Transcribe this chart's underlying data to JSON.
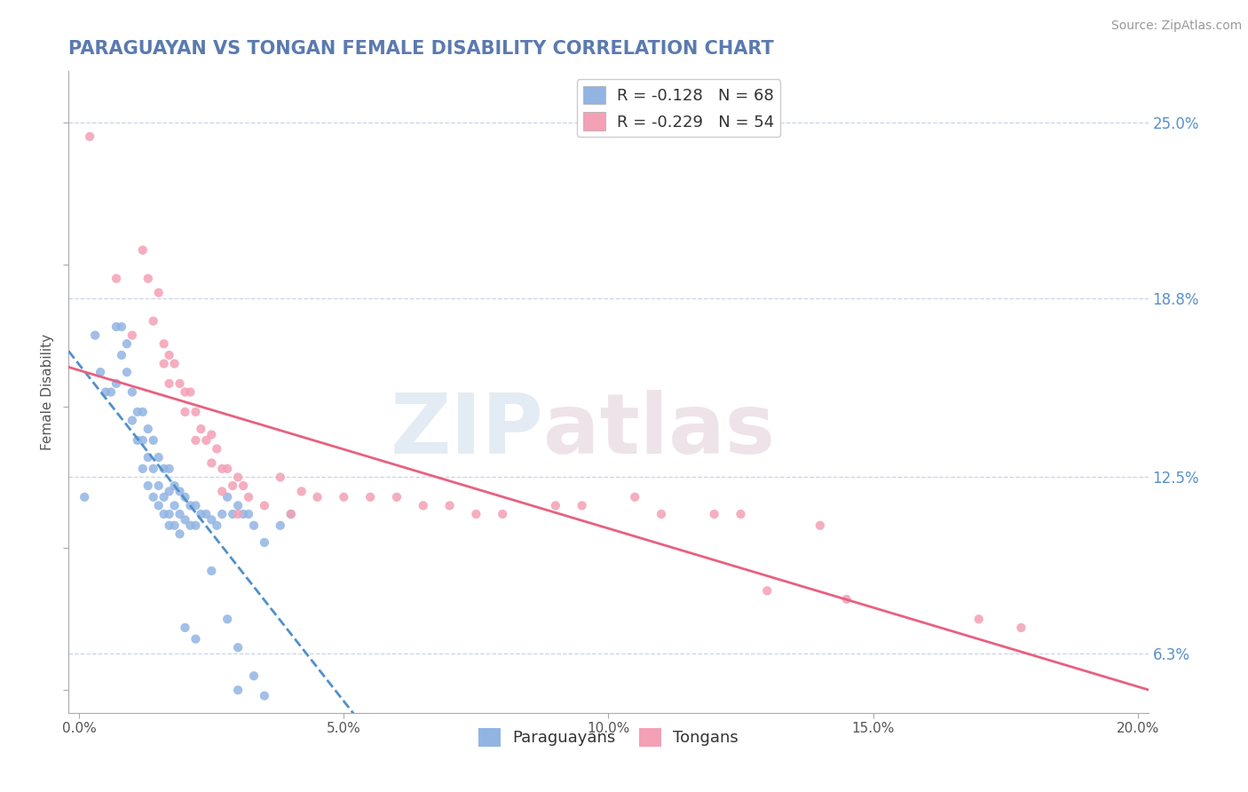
{
  "title": "PARAGUAYAN VS TONGAN FEMALE DISABILITY CORRELATION CHART",
  "source": "Source: ZipAtlas.com",
  "ylabel": "Female Disability",
  "xlim": [
    -0.002,
    0.202
  ],
  "ylim": [
    0.042,
    0.268
  ],
  "right_yticks": [
    0.063,
    0.125,
    0.188,
    0.25
  ],
  "right_yticklabels": [
    "6.3%",
    "12.5%",
    "18.8%",
    "25.0%"
  ],
  "xticks": [
    0.0,
    0.05,
    0.1,
    0.15,
    0.2
  ],
  "xticklabels": [
    "0.0%",
    "5.0%",
    "10.0%",
    "15.0%",
    "20.0%"
  ],
  "paraguayan_R": -0.128,
  "paraguayan_N": 68,
  "tongan_R": -0.229,
  "tongan_N": 54,
  "paraguayan_color": "#92b4e3",
  "tongan_color": "#f4a0b5",
  "paraguayan_line_color": "#5090cc",
  "tongan_line_color": "#e86080",
  "background_color": "#ffffff",
  "grid_color": "#c8d4e8",
  "title_color": "#5a7ab0",
  "watermark_zip": "ZIP",
  "watermark_atlas": "atlas",
  "paraguayan_x": [
    0.001,
    0.003,
    0.004,
    0.005,
    0.006,
    0.007,
    0.007,
    0.008,
    0.008,
    0.009,
    0.009,
    0.01,
    0.01,
    0.011,
    0.011,
    0.012,
    0.012,
    0.012,
    0.013,
    0.013,
    0.013,
    0.014,
    0.014,
    0.014,
    0.015,
    0.015,
    0.015,
    0.016,
    0.016,
    0.016,
    0.017,
    0.017,
    0.017,
    0.017,
    0.018,
    0.018,
    0.018,
    0.019,
    0.019,
    0.019,
    0.02,
    0.02,
    0.021,
    0.021,
    0.022,
    0.022,
    0.023,
    0.024,
    0.025,
    0.026,
    0.027,
    0.028,
    0.029,
    0.03,
    0.031,
    0.032,
    0.033,
    0.035,
    0.038,
    0.04,
    0.025,
    0.028,
    0.03,
    0.033,
    0.022,
    0.02,
    0.035,
    0.03
  ],
  "paraguayan_y": [
    0.118,
    0.175,
    0.162,
    0.155,
    0.155,
    0.178,
    0.158,
    0.178,
    0.168,
    0.172,
    0.162,
    0.155,
    0.145,
    0.148,
    0.138,
    0.148,
    0.138,
    0.128,
    0.142,
    0.132,
    0.122,
    0.138,
    0.128,
    0.118,
    0.132,
    0.122,
    0.115,
    0.128,
    0.118,
    0.112,
    0.128,
    0.12,
    0.112,
    0.108,
    0.122,
    0.115,
    0.108,
    0.12,
    0.112,
    0.105,
    0.118,
    0.11,
    0.115,
    0.108,
    0.115,
    0.108,
    0.112,
    0.112,
    0.11,
    0.108,
    0.112,
    0.118,
    0.112,
    0.115,
    0.112,
    0.112,
    0.108,
    0.102,
    0.108,
    0.112,
    0.092,
    0.075,
    0.065,
    0.055,
    0.068,
    0.072,
    0.048,
    0.05
  ],
  "tongan_x": [
    0.002,
    0.007,
    0.01,
    0.012,
    0.013,
    0.014,
    0.015,
    0.016,
    0.016,
    0.017,
    0.017,
    0.018,
    0.019,
    0.02,
    0.02,
    0.021,
    0.022,
    0.022,
    0.023,
    0.024,
    0.025,
    0.025,
    0.026,
    0.027,
    0.027,
    0.028,
    0.029,
    0.03,
    0.031,
    0.032,
    0.038,
    0.042,
    0.05,
    0.055,
    0.065,
    0.07,
    0.08,
    0.095,
    0.11,
    0.125,
    0.14,
    0.03,
    0.035,
    0.04,
    0.045,
    0.06,
    0.075,
    0.09,
    0.105,
    0.12,
    0.17,
    0.178,
    0.145,
    0.13
  ],
  "tongan_y": [
    0.245,
    0.195,
    0.175,
    0.205,
    0.195,
    0.18,
    0.19,
    0.165,
    0.172,
    0.168,
    0.158,
    0.165,
    0.158,
    0.155,
    0.148,
    0.155,
    0.148,
    0.138,
    0.142,
    0.138,
    0.14,
    0.13,
    0.135,
    0.128,
    0.12,
    0.128,
    0.122,
    0.125,
    0.122,
    0.118,
    0.125,
    0.12,
    0.118,
    0.118,
    0.115,
    0.115,
    0.112,
    0.115,
    0.112,
    0.112,
    0.108,
    0.112,
    0.115,
    0.112,
    0.118,
    0.118,
    0.112,
    0.115,
    0.118,
    0.112,
    0.075,
    0.072,
    0.082,
    0.085
  ]
}
